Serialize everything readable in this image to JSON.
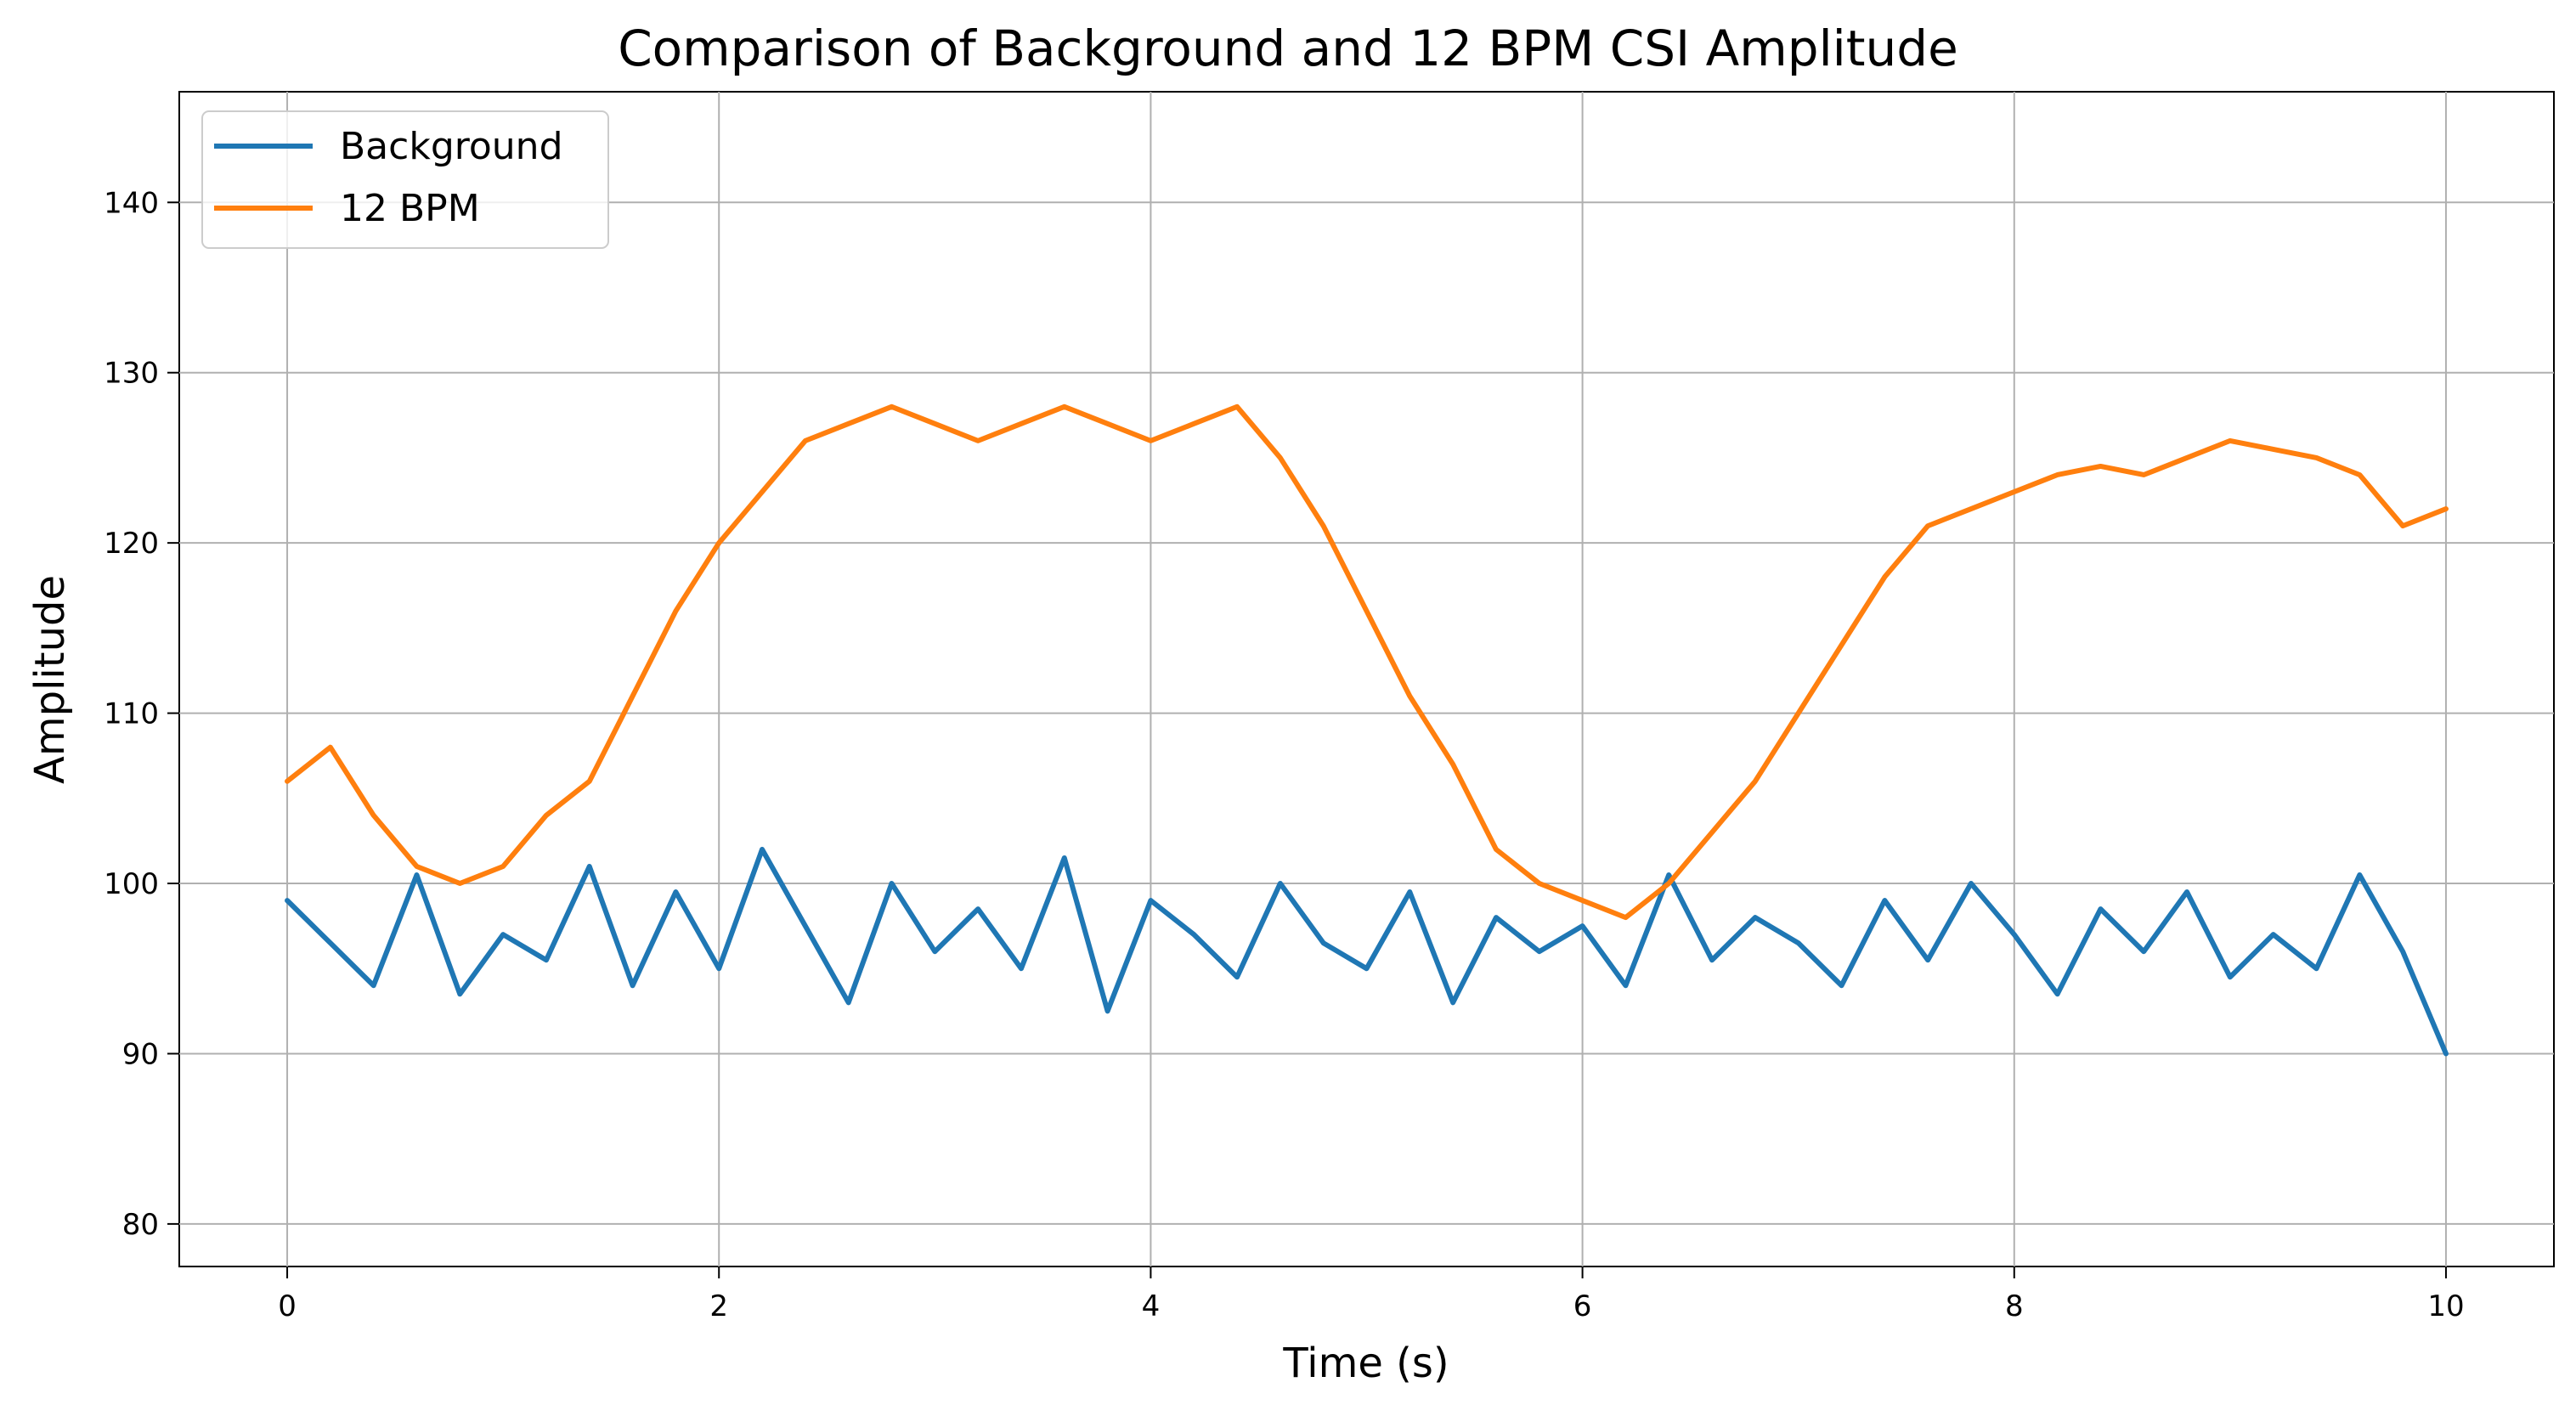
{
  "chart_data": {
    "type": "line",
    "title": "Comparison of Background and 12 BPM CSI Amplitude",
    "xlabel": "Time (s)",
    "ylabel": "Amplitude",
    "xlim": [
      -0.5,
      10.5
    ],
    "ylim": [
      77.5,
      146.5
    ],
    "xticks": [
      0,
      2,
      4,
      6,
      8,
      10
    ],
    "yticks": [
      80,
      90,
      100,
      110,
      120,
      130,
      140
    ],
    "grid": true,
    "legend_position": "top-left",
    "series": [
      {
        "name": "Background",
        "color": "#1f77b4",
        "x": [
          0.0,
          0.2,
          0.4,
          0.6,
          0.8,
          1.0,
          1.2,
          1.4,
          1.6,
          1.8,
          2.0,
          2.2,
          2.4,
          2.6,
          2.8,
          3.0,
          3.2,
          3.4,
          3.6,
          3.8,
          4.0,
          4.2,
          4.4,
          4.6,
          4.8,
          5.0,
          5.2,
          5.4,
          5.6,
          5.8,
          6.0,
          6.2,
          6.4,
          6.6,
          6.8,
          7.0,
          7.2,
          7.4,
          7.6,
          7.8,
          8.0,
          8.2,
          8.4,
          8.6,
          8.8,
          9.0,
          9.2,
          9.4,
          9.6,
          9.8,
          10.0
        ],
        "y": [
          99.0,
          96.5,
          94.0,
          100.5,
          93.5,
          97.0,
          95.5,
          101.0,
          94.0,
          99.5,
          95.0,
          102.0,
          97.5,
          93.0,
          100.0,
          96.0,
          98.5,
          95.0,
          101.5,
          92.5,
          99.0,
          97.0,
          94.5,
          100.0,
          96.5,
          95.0,
          99.5,
          93.0,
          98.0,
          96.0,
          97.5,
          94.0,
          100.5,
          95.5,
          98.0,
          96.5,
          94.0,
          99.0,
          95.5,
          100.0,
          97.0,
          93.5,
          98.5,
          96.0,
          99.5,
          94.5,
          97.0,
          95.0,
          100.5,
          96.0,
          90.0
        ]
      },
      {
        "name": "12 BPM",
        "color": "#ff7f0e",
        "x": [
          0.0,
          0.2,
          0.4,
          0.6,
          0.8,
          1.0,
          1.2,
          1.4,
          1.6,
          1.8,
          2.0,
          2.2,
          2.4,
          2.6,
          2.8,
          3.0,
          3.2,
          3.4,
          3.6,
          3.8,
          4.0,
          4.2,
          4.4,
          4.6,
          4.8,
          5.0,
          5.2,
          5.4,
          5.6,
          5.8,
          6.0,
          6.2,
          6.4,
          6.6,
          6.8,
          7.0,
          7.2,
          7.4,
          7.6,
          7.8,
          8.0,
          8.2,
          8.4,
          8.6,
          8.8,
          9.0,
          9.2,
          9.4,
          9.6,
          9.8,
          10.0
        ],
        "y": [
          106.0,
          108.0,
          104.0,
          101.0,
          100.0,
          101.0,
          104.0,
          106.0,
          111.0,
          116.0,
          120.0,
          123.0,
          126.0,
          127.0,
          128.0,
          127.0,
          126.0,
          127.0,
          128.0,
          127.0,
          126.0,
          127.0,
          128.0,
          125.0,
          121.0,
          116.0,
          111.0,
          107.0,
          102.0,
          100.0,
          99.0,
          98.0,
          100.0,
          103.0,
          106.0,
          110.0,
          114.0,
          118.0,
          121.0,
          122.0,
          123.0,
          124.0,
          124.5,
          124.0,
          125.0,
          126.0,
          125.5,
          125.0,
          124.0,
          121.0,
          122.0
        ]
      }
    ]
  }
}
